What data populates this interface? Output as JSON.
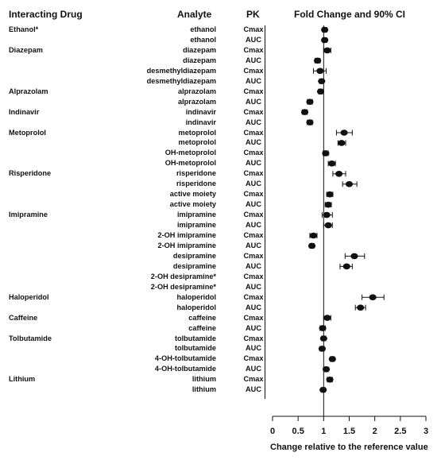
{
  "header": {
    "interacting_drug": "Interacting Drug",
    "analyte": "Analyte",
    "pk": "PK",
    "fold_change": "Fold Change and 90% CI"
  },
  "chart_data": {
    "type": "forest",
    "xlabel": "Change relative to the reference value",
    "xlim": [
      0,
      3
    ],
    "xticks": [
      "0",
      "0.5",
      "1",
      "1.5",
      "2",
      "2.5",
      "3"
    ],
    "reference_line": 1,
    "rows": [
      {
        "drug": "Ethanol*",
        "analyte": "ethanol",
        "pk": "Cmax",
        "est": 1.02,
        "lo": 0.98,
        "hi": 1.06
      },
      {
        "drug": "",
        "analyte": "ethanol",
        "pk": "AUC",
        "est": 1.02,
        "lo": 0.98,
        "hi": 1.06
      },
      {
        "drug": "Diazepam",
        "analyte": "diazepam",
        "pk": "Cmax",
        "est": 1.07,
        "lo": 1.0,
        "hi": 1.14
      },
      {
        "drug": "",
        "analyte": "diazepam",
        "pk": "AUC",
        "est": 0.88,
        "lo": 0.83,
        "hi": 0.93
      },
      {
        "drug": "",
        "analyte": "desmethyldiazepam",
        "pk": "Cmax",
        "est": 0.93,
        "lo": 0.8,
        "hi": 1.05
      },
      {
        "drug": "",
        "analyte": "desmethyldiazepam",
        "pk": "AUC",
        "est": 0.96,
        "lo": 0.92,
        "hi": 1.0
      },
      {
        "drug": "Alprazolam",
        "analyte": "alprazolam",
        "pk": "Cmax",
        "est": 0.94,
        "lo": 0.9,
        "hi": 0.98
      },
      {
        "drug": "",
        "analyte": "alprazolam",
        "pk": "AUC",
        "est": 0.73,
        "lo": 0.68,
        "hi": 0.78
      },
      {
        "drug": "Indinavir",
        "analyte": "indinavir",
        "pk": "Cmax",
        "est": 0.63,
        "lo": 0.58,
        "hi": 0.68
      },
      {
        "drug": "",
        "analyte": "indinavir",
        "pk": "AUC",
        "est": 0.73,
        "lo": 0.68,
        "hi": 0.78
      },
      {
        "drug": "Metoprolol",
        "analyte": "metoprolol",
        "pk": "Cmax",
        "est": 1.4,
        "lo": 1.25,
        "hi": 1.56
      },
      {
        "drug": "",
        "analyte": "metoprolol",
        "pk": "AUC",
        "est": 1.35,
        "lo": 1.28,
        "hi": 1.43
      },
      {
        "drug": "",
        "analyte": "OH-metoprolol",
        "pk": "Cmax",
        "est": 1.04,
        "lo": 0.99,
        "hi": 1.09
      },
      {
        "drug": "",
        "analyte": "OH-metoprolol",
        "pk": "AUC",
        "est": 1.16,
        "lo": 1.09,
        "hi": 1.23
      },
      {
        "drug": "Risperidone",
        "analyte": "risperidone",
        "pk": "Cmax",
        "est": 1.3,
        "lo": 1.18,
        "hi": 1.43
      },
      {
        "drug": "",
        "analyte": "risperidone",
        "pk": "AUC",
        "est": 1.5,
        "lo": 1.37,
        "hi": 1.65
      },
      {
        "drug": "",
        "analyte": "active moiety",
        "pk": "Cmax",
        "est": 1.12,
        "lo": 1.06,
        "hi": 1.18
      },
      {
        "drug": "",
        "analyte": "active moiety",
        "pk": "AUC",
        "est": 1.09,
        "lo": 1.03,
        "hi": 1.15
      },
      {
        "drug": "Imipramine",
        "analyte": "imipramine",
        "pk": "Cmax",
        "est": 1.06,
        "lo": 0.97,
        "hi": 1.17
      },
      {
        "drug": "",
        "analyte": "imipramine",
        "pk": "AUC",
        "est": 1.09,
        "lo": 1.0,
        "hi": 1.17
      },
      {
        "drug": "",
        "analyte": "2-OH imipramine",
        "pk": "Cmax",
        "est": 0.8,
        "lo": 0.73,
        "hi": 0.87
      },
      {
        "drug": "",
        "analyte": "2-OH imipramine",
        "pk": "AUC",
        "est": 0.77,
        "lo": 0.73,
        "hi": 0.81
      },
      {
        "drug": "",
        "analyte": "desipramine",
        "pk": "Cmax",
        "est": 1.6,
        "lo": 1.42,
        "hi": 1.8
      },
      {
        "drug": "",
        "analyte": "desipramine",
        "pk": "AUC",
        "est": 1.45,
        "lo": 1.32,
        "hi": 1.56
      },
      {
        "drug": "",
        "analyte": "2-OH desipramine*",
        "pk": "Cmax",
        "est": null,
        "lo": null,
        "hi": null
      },
      {
        "drug": "",
        "analyte": "2-OH desipramine*",
        "pk": "AUC",
        "est": null,
        "lo": null,
        "hi": null
      },
      {
        "drug": "Haloperidol",
        "analyte": "haloperidol",
        "pk": "Cmax",
        "est": 1.96,
        "lo": 1.75,
        "hi": 2.18
      },
      {
        "drug": "",
        "analyte": "haloperidol",
        "pk": "AUC",
        "est": 1.72,
        "lo": 1.62,
        "hi": 1.82
      },
      {
        "drug": "Caffeine",
        "analyte": "caffeine",
        "pk": "Cmax",
        "est": 1.07,
        "lo": 1.0,
        "hi": 1.14
      },
      {
        "drug": "",
        "analyte": "caffeine",
        "pk": "AUC",
        "est": 0.98,
        "lo": 0.93,
        "hi": 1.03
      },
      {
        "drug": "Tolbutamide",
        "analyte": "tolbutamide",
        "pk": "Cmax",
        "est": 1.0,
        "lo": 0.96,
        "hi": 1.04
      },
      {
        "drug": "",
        "analyte": "tolbutamide",
        "pk": "AUC",
        "est": 0.97,
        "lo": 0.93,
        "hi": 1.01
      },
      {
        "drug": "",
        "analyte": "4-OH-tolbutamide",
        "pk": "Cmax",
        "est": 1.17,
        "lo": 1.13,
        "hi": 1.21
      },
      {
        "drug": "",
        "analyte": "4-OH-tolbutamide",
        "pk": "AUC",
        "est": 1.05,
        "lo": 1.01,
        "hi": 1.09
      },
      {
        "drug": "Lithium",
        "analyte": "lithium",
        "pk": "Cmax",
        "est": 1.12,
        "lo": 1.07,
        "hi": 1.17
      },
      {
        "drug": "",
        "analyte": "lithium",
        "pk": "AUC",
        "est": 0.99,
        "lo": 0.95,
        "hi": 1.03
      }
    ]
  }
}
